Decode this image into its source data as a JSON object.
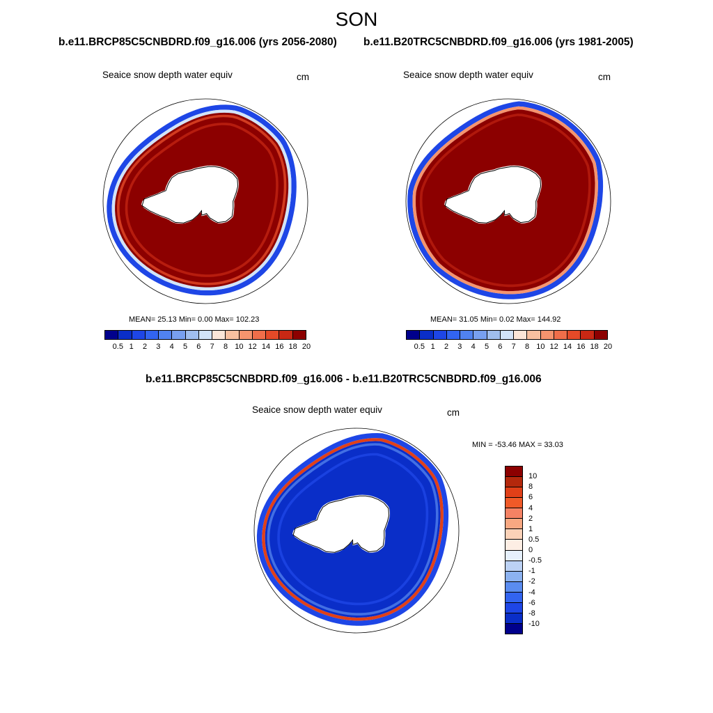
{
  "figure": {
    "title": "SON",
    "panel_left_subtitle": "b.e11.BRCP85C5CNBDRD.f09_g16.006 (yrs 2056-2080)",
    "panel_right_subtitle": "b.e11.B20TRC5CNBDRD.f09_g16.006 (yrs 1981-2005)",
    "panel_diff_subtitle": "b.e11.BRCP85C5CNBDRD.f09_g16.006 - b.e11.B20TRC5CNBDRD.f09_g16.006"
  },
  "panels": {
    "left": {
      "variable": "Seaice snow depth water equiv",
      "units": "cm",
      "stats": "MEAN=  25.13  Min=   0.00  Max= 102.23"
    },
    "right": {
      "variable": "Seaice snow depth water equiv",
      "units": "cm",
      "stats": "MEAN=  31.05  Min=   0.02  Max= 144.92"
    },
    "diff": {
      "variable": "Seaice snow depth water equiv",
      "units": "cm",
      "stats": "MIN = -53.46 MAX =  33.03"
    }
  },
  "colorbars": {
    "abs_labels": [
      "0.5",
      "1",
      "2",
      "3",
      "4",
      "5",
      "6",
      "7",
      "8",
      "10",
      "12",
      "14",
      "16",
      "18",
      "20"
    ],
    "abs_colors": [
      "#00008c",
      "#0a2ec8",
      "#1e46e6",
      "#3264f0",
      "#5082f0",
      "#78a0f0",
      "#a0beee",
      "#d2e4f8",
      "#fbe6d8",
      "#f8c0a0",
      "#f5946e",
      "#f06e4a",
      "#e44a28",
      "#c82814",
      "#8c0000"
    ],
    "diff_labels": [
      "10",
      "8",
      "6",
      "4",
      "2",
      "1",
      "0.5",
      "0",
      "-0.5",
      "-1",
      "-2",
      "-4",
      "-6",
      "-8",
      "-10"
    ],
    "diff_colors": [
      "#8c0000",
      "#b4280c",
      "#e04018",
      "#f05a28",
      "#f58264",
      "#f8a882",
      "#fbd2b8",
      "#fdeee4",
      "#e6f0fc",
      "#bcd2f5",
      "#8cb2f0",
      "#5a8cf0",
      "#3264f0",
      "#1e46e6",
      "#0a2ec8",
      "#00008c"
    ]
  }
}
